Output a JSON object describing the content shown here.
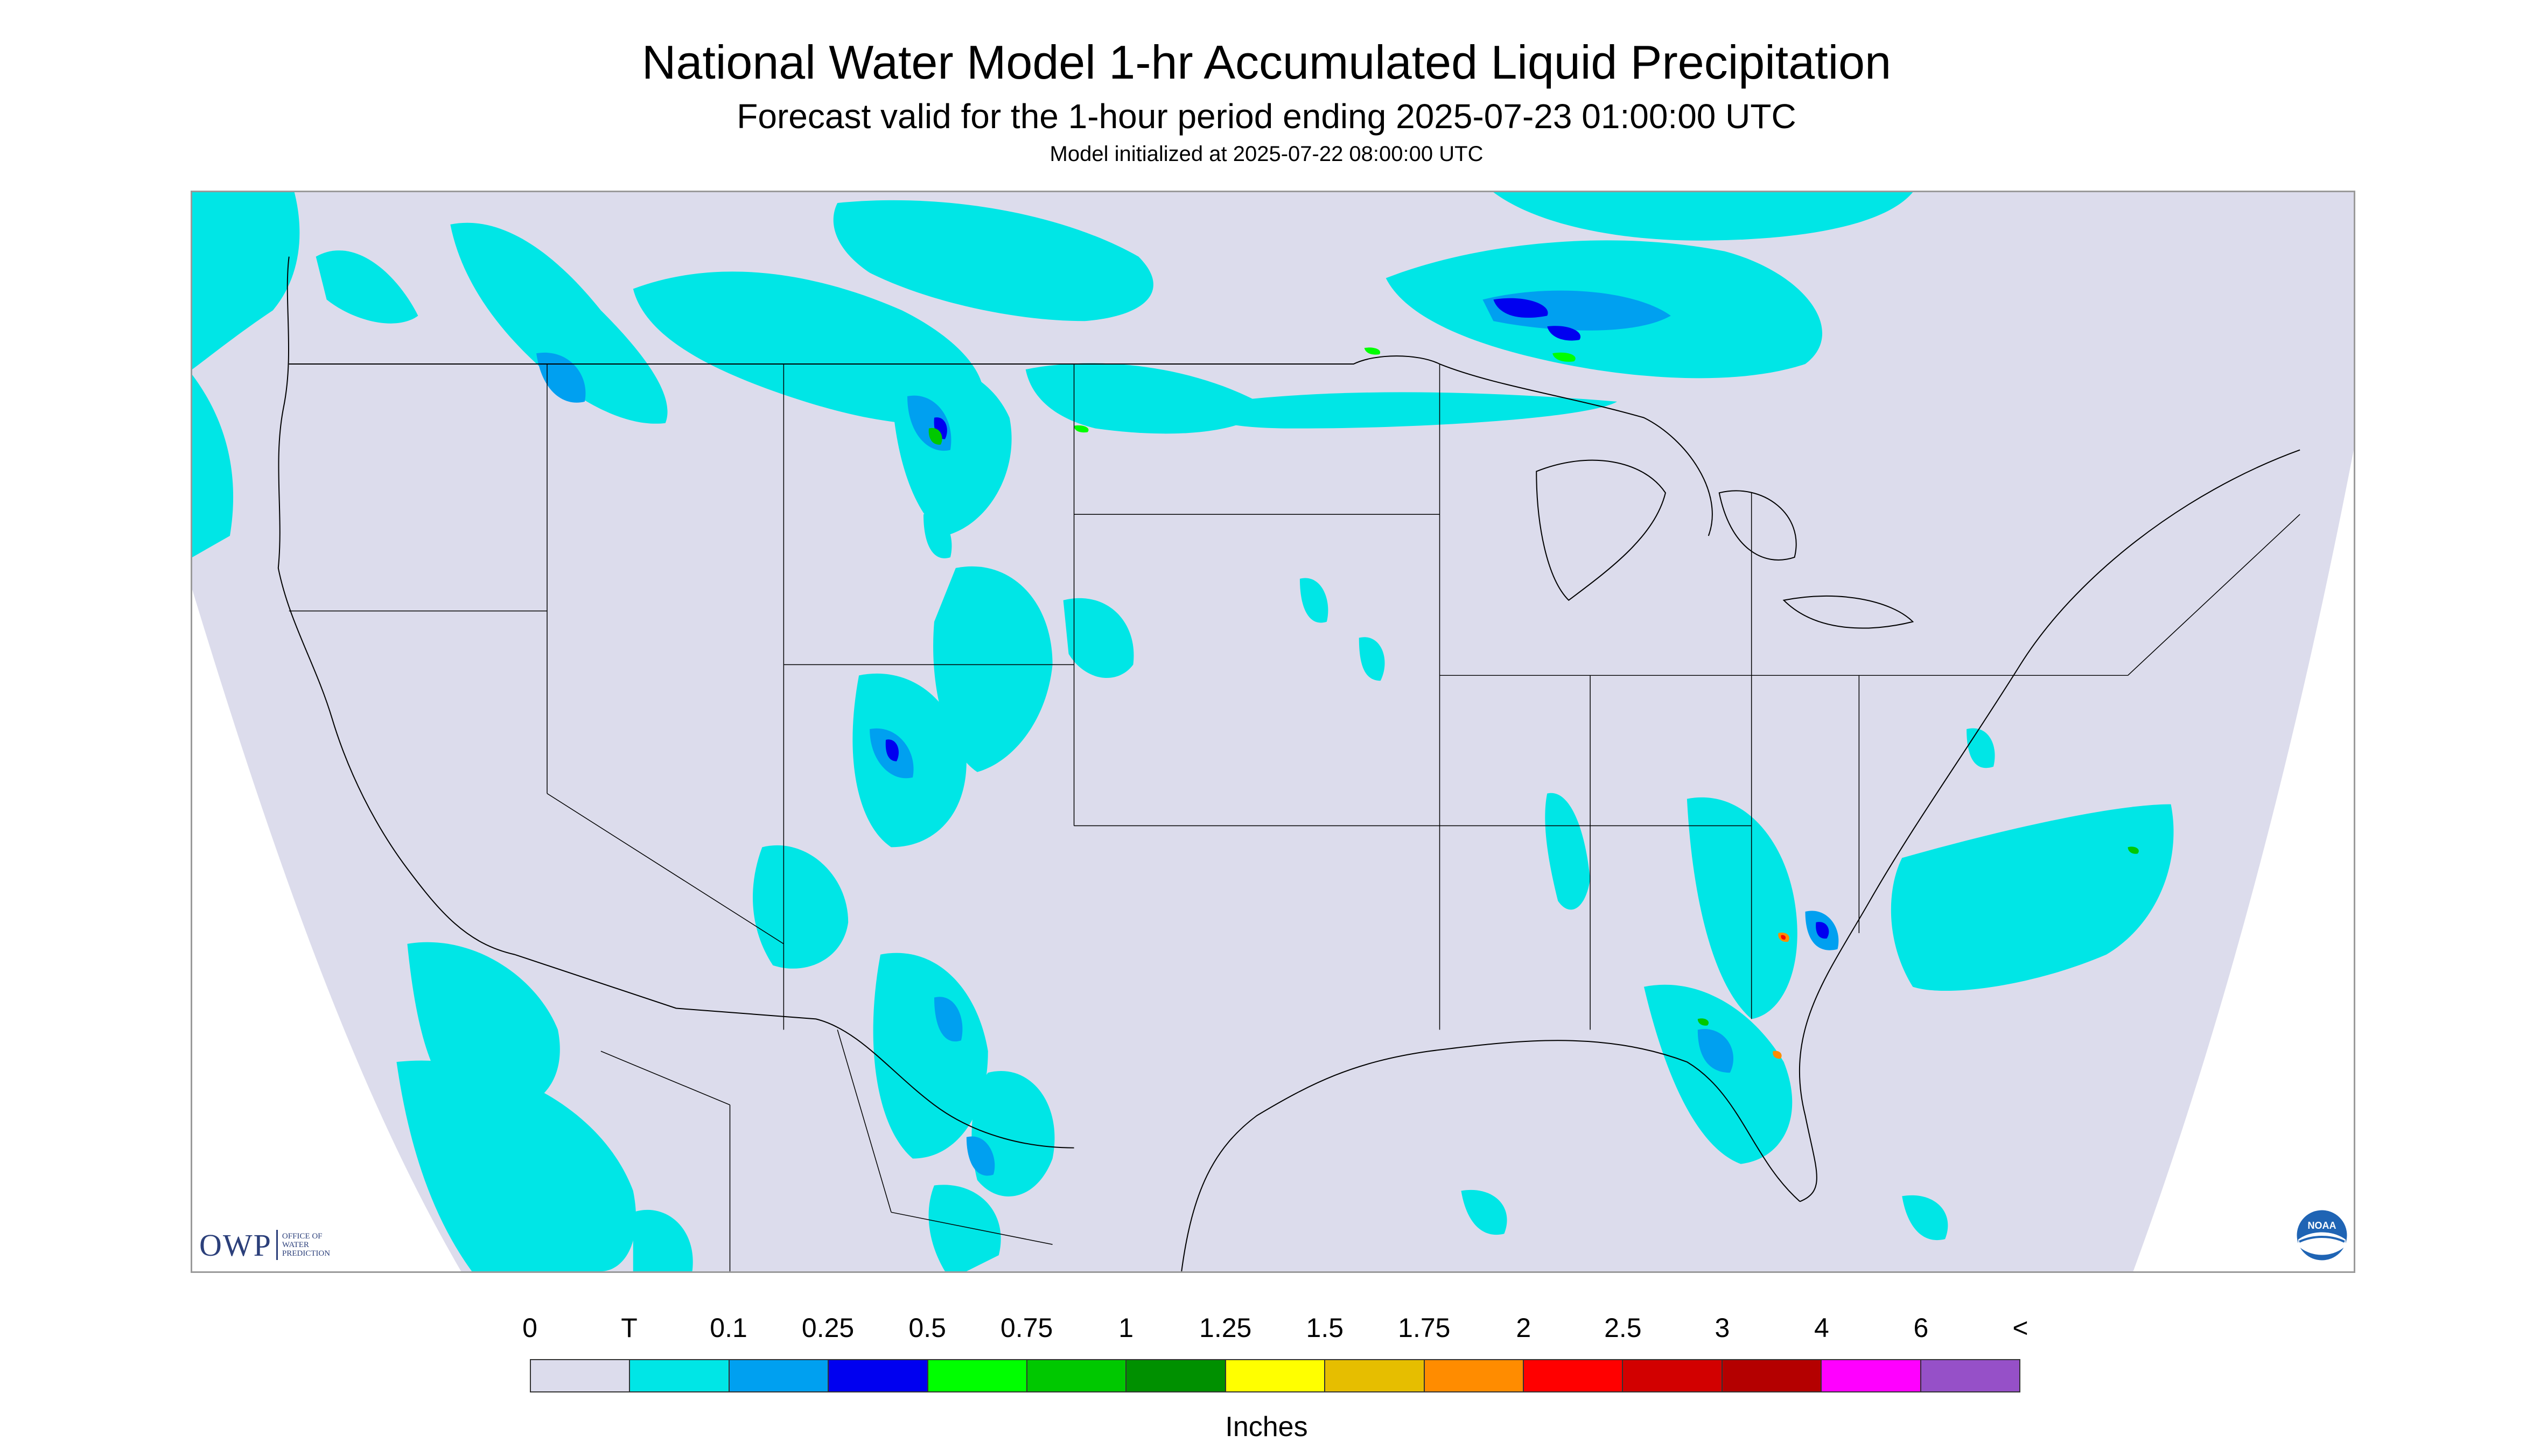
{
  "header": {
    "title": "National Water Model 1-hr Accumulated Liquid Precipitation",
    "subtitle": "Forecast valid for the 1-hour period ending 2025-07-23 01:00:00 UTC",
    "init": "Model initialized at 2025-07-22 08:00:00 UTC"
  },
  "map": {
    "background_color": "#dcdcec",
    "outside_domain_color": "#ffffff",
    "boundary_color": "#000000"
  },
  "logos": {
    "owp_letters": "OWP",
    "owp_line1": "OFFICE OF",
    "owp_line2": "WATER",
    "owp_line3": "PREDICTION",
    "noaa_text": "NOAA"
  },
  "legend": {
    "tick_labels": [
      "0",
      "T",
      "0.1",
      "0.25",
      "0.5",
      "0.75",
      "1",
      "1.25",
      "1.5",
      "1.75",
      "2",
      "2.5",
      "3",
      "4",
      "6",
      "<"
    ],
    "colors": [
      "#dcdcec",
      "#00e6e6",
      "#00a0f0",
      "#0000f0",
      "#00ff00",
      "#00c800",
      "#009000",
      "#ffff00",
      "#e6be00",
      "#ff8c00",
      "#ff0000",
      "#d20000",
      "#b40000",
      "#ff00ff",
      "#9650c8"
    ],
    "units": "Inches"
  }
}
